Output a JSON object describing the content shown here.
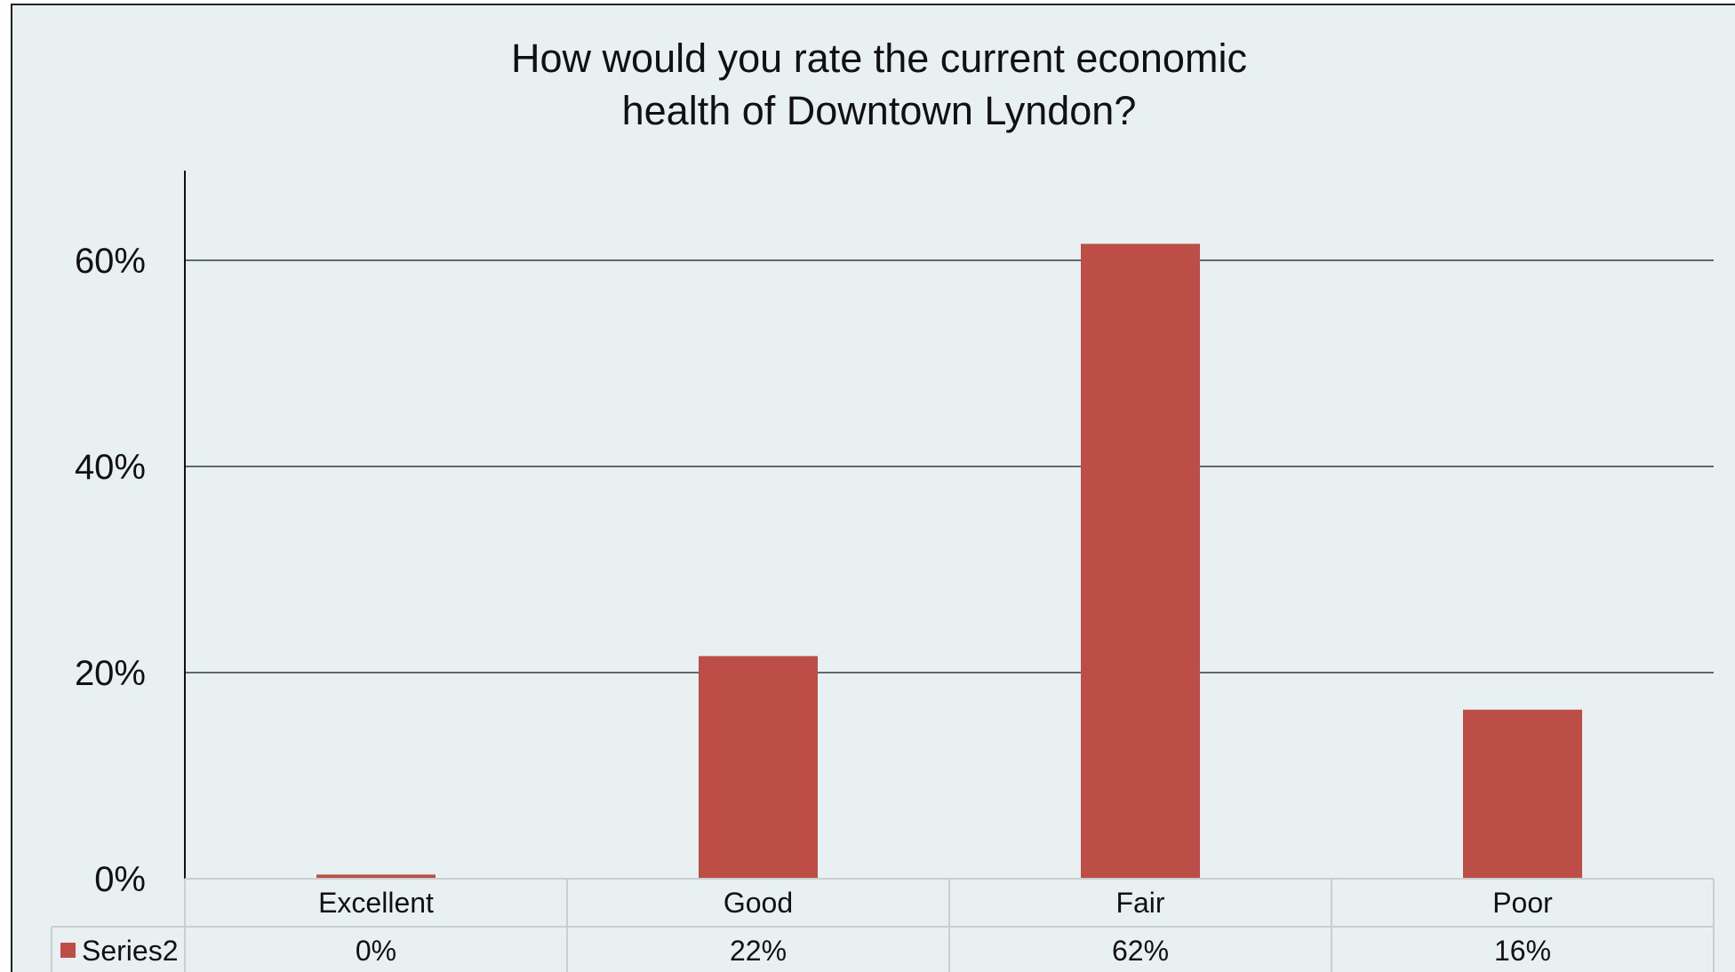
{
  "chart_data": {
    "type": "bar",
    "title_lines": [
      "How would you rate the current economic",
      "health of Downtown Lyndon?"
    ],
    "categories": [
      "Excellent",
      "Good",
      "Fair",
      "Poor"
    ],
    "series": [
      {
        "name": "Series2",
        "values": [
          0.4,
          21.6,
          61.6,
          16.4
        ],
        "table_labels": [
          "0%",
          "22%",
          "62%",
          "16%"
        ]
      }
    ],
    "ylim": [
      0,
      70
    ],
    "yticks": [
      0,
      20,
      40,
      60
    ],
    "ytick_labels": [
      "0%",
      "20%",
      "40%",
      "60%"
    ],
    "grid": true,
    "data_table": true,
    "colors": {
      "bar": "#bd4d47",
      "background": "#e9f0f2",
      "gridline": "#5e6a6a",
      "table_border": "#c9cfcf",
      "axis": "#111111"
    }
  }
}
